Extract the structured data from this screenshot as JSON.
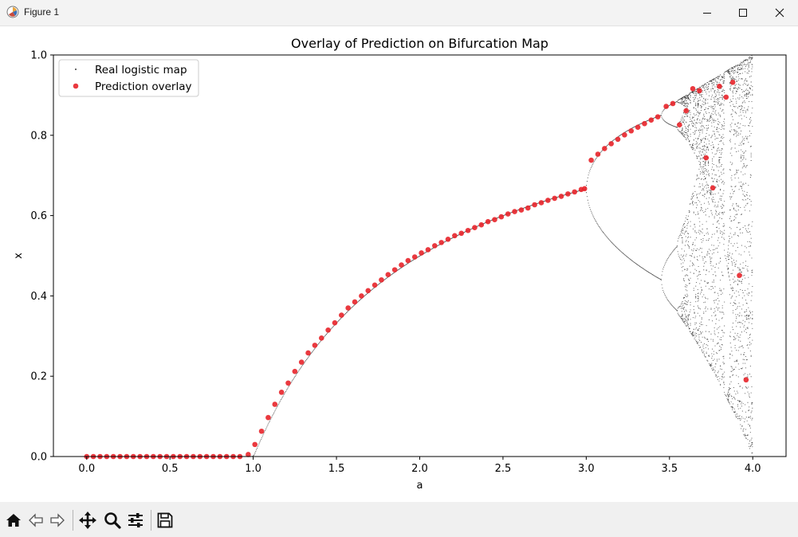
{
  "window": {
    "title": "Figure 1",
    "icons": [
      "app-icon",
      "minimize-icon",
      "maximize-icon",
      "close-icon"
    ]
  },
  "toolbar": {
    "buttons": [
      {
        "name": "home",
        "icon": "home-icon"
      },
      {
        "name": "back",
        "icon": "arrow-left-icon"
      },
      {
        "name": "forward",
        "icon": "arrow-right-icon"
      },
      {
        "name": "pan",
        "icon": "move-icon"
      },
      {
        "name": "zoom",
        "icon": "magnifier-icon"
      },
      {
        "name": "configure",
        "icon": "sliders-icon"
      },
      {
        "name": "save",
        "icon": "floppy-disk-icon"
      }
    ]
  },
  "chart_data": {
    "type": "scatter",
    "title": "Overlay of Prediction on Bifurcation Map",
    "xlabel": "a",
    "ylabel": "x",
    "xlim": [
      -0.2,
      4.2
    ],
    "ylim": [
      0.0,
      1.0
    ],
    "xticks": [
      "0.0",
      "0.5",
      "1.0",
      "1.5",
      "2.0",
      "2.5",
      "3.0",
      "3.5",
      "4.0"
    ],
    "yticks": [
      "0.0",
      "0.2",
      "0.4",
      "0.6",
      "0.8",
      "1.0"
    ],
    "grid": false,
    "legend_position": "upper left",
    "series": [
      {
        "name": "Real logistic map",
        "color": "#000000",
        "marker": "tiny dot",
        "x_range": [
          0.0,
          4.0
        ],
        "description": "bifurcation diagram of x(n+1) = a·x(n)·(1−x(n)); fixed point 0 for a≤1, 1−1/a for 1<a≤3, period doubling after 3, chaos near 3.57"
      },
      {
        "name": "Prediction overlay",
        "color": "#e8232a",
        "marker": "circle",
        "points": [
          [
            0.0,
            0.0
          ],
          [
            0.04,
            0.0
          ],
          [
            0.08,
            0.0
          ],
          [
            0.12,
            0.0
          ],
          [
            0.16,
            0.0
          ],
          [
            0.2,
            0.0
          ],
          [
            0.24,
            0.0
          ],
          [
            0.28,
            0.0
          ],
          [
            0.32,
            0.0
          ],
          [
            0.36,
            0.0
          ],
          [
            0.4,
            0.0
          ],
          [
            0.44,
            0.0
          ],
          [
            0.48,
            0.0
          ],
          [
            0.52,
            0.0
          ],
          [
            0.56,
            0.0
          ],
          [
            0.6,
            0.0
          ],
          [
            0.64,
            0.0
          ],
          [
            0.68,
            0.0
          ],
          [
            0.72,
            0.0
          ],
          [
            0.76,
            0.0
          ],
          [
            0.8,
            0.0
          ],
          [
            0.84,
            0.0
          ],
          [
            0.88,
            0.0
          ],
          [
            0.92,
            0.0
          ],
          [
            0.97,
            0.005
          ],
          [
            1.01,
            0.03
          ],
          [
            1.05,
            0.063
          ],
          [
            1.09,
            0.097
          ],
          [
            1.13,
            0.13
          ],
          [
            1.17,
            0.16
          ],
          [
            1.21,
            0.183
          ],
          [
            1.25,
            0.212
          ],
          [
            1.29,
            0.235
          ],
          [
            1.33,
            0.258
          ],
          [
            1.37,
            0.277
          ],
          [
            1.41,
            0.295
          ],
          [
            1.45,
            0.315
          ],
          [
            1.49,
            0.333
          ],
          [
            1.53,
            0.352
          ],
          [
            1.57,
            0.37
          ],
          [
            1.61,
            0.385
          ],
          [
            1.65,
            0.4
          ],
          [
            1.69,
            0.413
          ],
          [
            1.73,
            0.427
          ],
          [
            1.77,
            0.44
          ],
          [
            1.81,
            0.453
          ],
          [
            1.85,
            0.465
          ],
          [
            1.89,
            0.477
          ],
          [
            1.93,
            0.488
          ],
          [
            1.97,
            0.497
          ],
          [
            2.01,
            0.507
          ],
          [
            2.05,
            0.515
          ],
          [
            2.09,
            0.525
          ],
          [
            2.13,
            0.533
          ],
          [
            2.17,
            0.541
          ],
          [
            2.21,
            0.55
          ],
          [
            2.25,
            0.556
          ],
          [
            2.29,
            0.563
          ],
          [
            2.33,
            0.57
          ],
          [
            2.37,
            0.577
          ],
          [
            2.41,
            0.585
          ],
          [
            2.45,
            0.59
          ],
          [
            2.49,
            0.597
          ],
          [
            2.53,
            0.604
          ],
          [
            2.57,
            0.61
          ],
          [
            2.61,
            0.614
          ],
          [
            2.65,
            0.619
          ],
          [
            2.69,
            0.627
          ],
          [
            2.73,
            0.632
          ],
          [
            2.77,
            0.638
          ],
          [
            2.81,
            0.643
          ],
          [
            2.85,
            0.648
          ],
          [
            2.89,
            0.654
          ],
          [
            2.93,
            0.659
          ],
          [
            2.97,
            0.665
          ],
          [
            2.99,
            0.667
          ],
          [
            3.03,
            0.738
          ],
          [
            3.07,
            0.753
          ],
          [
            3.11,
            0.767
          ],
          [
            3.15,
            0.779
          ],
          [
            3.19,
            0.79
          ],
          [
            3.23,
            0.801
          ],
          [
            3.27,
            0.811
          ],
          [
            3.31,
            0.82
          ],
          [
            3.35,
            0.829
          ],
          [
            3.39,
            0.838
          ],
          [
            3.43,
            0.846
          ],
          [
            3.48,
            0.872
          ],
          [
            3.52,
            0.879
          ],
          [
            3.56,
            0.826
          ],
          [
            3.6,
            0.861
          ],
          [
            3.64,
            0.916
          ],
          [
            3.68,
            0.911
          ],
          [
            3.72,
            0.744
          ],
          [
            3.76,
            0.669
          ],
          [
            3.8,
            0.922
          ],
          [
            3.84,
            0.895
          ],
          [
            3.88,
            0.932
          ],
          [
            3.92,
            0.451
          ],
          [
            3.96,
            0.191
          ]
        ]
      }
    ]
  }
}
